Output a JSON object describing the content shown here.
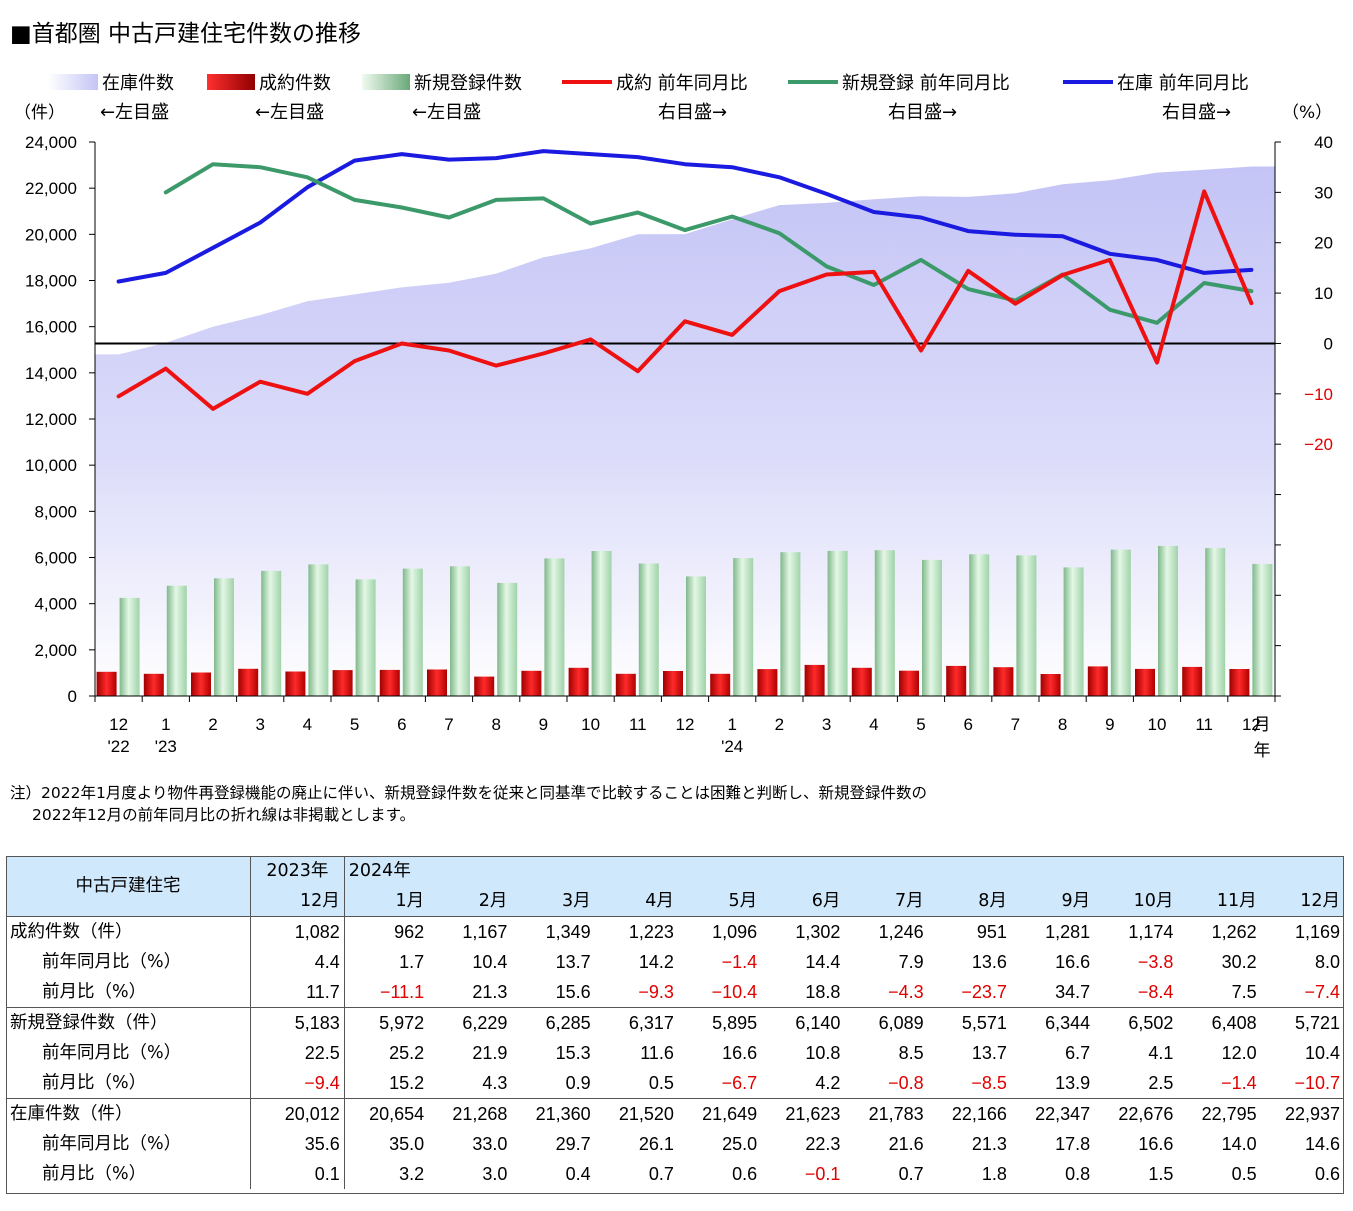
{
  "title": "■首都圏 中古戸建住宅件数の推移",
  "note": {
    "line1": "注）2022年1月度より物件再登録機能の廃止に伴い、新規登録件数を従来と同基準で比較することは困難と判断し、新規登録件数の",
    "line2": "2022年12月の前年同月比の折れ線は非掲載とします。"
  },
  "chart_data": {
    "type": "bar",
    "left_unit": "（件）",
    "right_unit": "（%）",
    "x_unit_top": "月",
    "x_unit_bottom": "年",
    "categories": [
      "12",
      "1",
      "2",
      "3",
      "4",
      "5",
      "6",
      "7",
      "8",
      "9",
      "10",
      "11",
      "12",
      "1",
      "2",
      "3",
      "4",
      "5",
      "6",
      "7",
      "8",
      "9",
      "10",
      "11",
      "12"
    ],
    "year_labels": [
      {
        "index": 0,
        "label": "'22"
      },
      {
        "index": 1,
        "label": "'23"
      },
      {
        "index": 13,
        "label": "'24"
      }
    ],
    "left_axis": {
      "min": 0,
      "max": 24000,
      "ticks": [
        "0",
        "2,000",
        "4,000",
        "6,000",
        "8,000",
        "10,000",
        "12,000",
        "14,000",
        "16,000",
        "18,000",
        "20,000",
        "22,000",
        "24,000"
      ]
    },
    "right_axis": {
      "min": -70,
      "max": 40,
      "ticks": [
        {
          "v": 40,
          "label": "40"
        },
        {
          "v": 30,
          "label": "30"
        },
        {
          "v": 20,
          "label": "20"
        },
        {
          "v": 10,
          "label": "10"
        },
        {
          "v": 0,
          "label": "0"
        },
        {
          "v": -10,
          "label": "−10"
        },
        {
          "v": -20,
          "label": "−20"
        }
      ]
    },
    "legend": [
      {
        "name": "在庫件数",
        "axis": "←左目盛",
        "kind": "area",
        "color": "#c8c8f8"
      },
      {
        "name": "成約件数",
        "axis": "←左目盛",
        "kind": "bar",
        "color": "#d80000"
      },
      {
        "name": "新規登録件数",
        "axis": "←左目盛",
        "kind": "bar",
        "color": "#b8e8c0"
      },
      {
        "name": "成約 前年同月比",
        "axis": "右目盛→",
        "kind": "line",
        "color": "#ee1111"
      },
      {
        "name": "新規登録 前年同月比",
        "axis": "右目盛→",
        "kind": "line",
        "color": "#3c9a6a"
      },
      {
        "name": "在庫 前年同月比",
        "axis": "右目盛→",
        "kind": "line",
        "color": "#1a1ae0"
      }
    ],
    "series": [
      {
        "name": "在庫件数",
        "values": [
          14800,
          15300,
          16000,
          16500,
          17100,
          17400,
          17700,
          17900,
          18300,
          19000,
          19400,
          20000,
          20012,
          20654,
          21268,
          21360,
          21520,
          21649,
          21623,
          21783,
          22166,
          22347,
          22676,
          22795,
          22937
        ]
      },
      {
        "name": "成約件数",
        "values": [
          1050,
          960,
          1020,
          1180,
          1060,
          1120,
          1130,
          1150,
          840,
          1090,
          1220,
          960,
          1082,
          962,
          1167,
          1349,
          1223,
          1096,
          1302,
          1246,
          951,
          1281,
          1174,
          1262,
          1169
        ]
      },
      {
        "name": "新規登録件数",
        "values": [
          4250,
          4780,
          5100,
          5420,
          5700,
          5050,
          5520,
          5620,
          4900,
          5960,
          6280,
          5740,
          5183,
          5972,
          6229,
          6285,
          6317,
          5895,
          6140,
          6089,
          5571,
          6344,
          6502,
          6408,
          5721
        ]
      },
      {
        "name": "成約 前年同月比",
        "values": [
          -10.5,
          -5,
          -13,
          -7.6,
          -10,
          -3.5,
          0,
          -1.4,
          -4.4,
          -2,
          0.8,
          -5.5,
          4.4,
          1.7,
          10.4,
          13.7,
          14.2,
          -1.4,
          14.4,
          7.9,
          13.6,
          16.6,
          -3.8,
          30.2,
          8.0
        ]
      },
      {
        "name": "新規登録 前年同月比",
        "values": [
          null,
          30,
          35.6,
          35,
          33,
          28.5,
          27,
          25,
          28.5,
          28.8,
          23.8,
          26,
          22.5,
          25.2,
          21.9,
          15.3,
          11.6,
          16.6,
          10.8,
          8.5,
          13.7,
          6.7,
          4.1,
          12.0,
          10.4
        ]
      },
      {
        "name": "在庫 前年同月比",
        "values": [
          12.3,
          14,
          19,
          24,
          31,
          36.3,
          37.6,
          36.5,
          36.8,
          38.2,
          37.6,
          37,
          35.6,
          35.0,
          33.0,
          29.7,
          26.1,
          25.0,
          22.3,
          21.6,
          21.3,
          17.8,
          16.6,
          14.0,
          14.6
        ]
      }
    ]
  },
  "table": {
    "corner": "中古戸建住宅",
    "year_2023": "2023年",
    "year_2024": "2024年",
    "months": [
      "12月",
      "1月",
      "2月",
      "3月",
      "4月",
      "5月",
      "6月",
      "7月",
      "8月",
      "9月",
      "10月",
      "11月",
      "12月"
    ],
    "rows": [
      {
        "label": "成約件数（件）",
        "sub": false,
        "group": true,
        "values": [
          "1,082",
          "962",
          "1,167",
          "1,349",
          "1,223",
          "1,096",
          "1,302",
          "1,246",
          "951",
          "1,281",
          "1,174",
          "1,262",
          "1,169"
        ]
      },
      {
        "label": "前年同月比（%）",
        "sub": true,
        "group": false,
        "values": [
          "4.4",
          "1.7",
          "10.4",
          "13.7",
          "14.2",
          "−1.4",
          "14.4",
          "7.9",
          "13.6",
          "16.6",
          "−3.8",
          "30.2",
          "8.0"
        ]
      },
      {
        "label": "前月比（%）",
        "sub": true,
        "group": false,
        "values": [
          "11.7",
          "−11.1",
          "21.3",
          "15.6",
          "−9.3",
          "−10.4",
          "18.8",
          "−4.3",
          "−23.7",
          "34.7",
          "−8.4",
          "7.5",
          "−7.4"
        ]
      },
      {
        "label": "新規登録件数（件）",
        "sub": false,
        "group": true,
        "values": [
          "5,183",
          "5,972",
          "6,229",
          "6,285",
          "6,317",
          "5,895",
          "6,140",
          "6,089",
          "5,571",
          "6,344",
          "6,502",
          "6,408",
          "5,721"
        ]
      },
      {
        "label": "前年同月比（%）",
        "sub": true,
        "group": false,
        "values": [
          "22.5",
          "25.2",
          "21.9",
          "15.3",
          "11.6",
          "16.6",
          "10.8",
          "8.5",
          "13.7",
          "6.7",
          "4.1",
          "12.0",
          "10.4"
        ]
      },
      {
        "label": "前月比（%）",
        "sub": true,
        "group": false,
        "values": [
          "−9.4",
          "15.2",
          "4.3",
          "0.9",
          "0.5",
          "−6.7",
          "4.2",
          "−0.8",
          "−8.5",
          "13.9",
          "2.5",
          "−1.4",
          "−10.7"
        ]
      },
      {
        "label": "在庫件数（件）",
        "sub": false,
        "group": true,
        "values": [
          "20,012",
          "20,654",
          "21,268",
          "21,360",
          "21,520",
          "21,649",
          "21,623",
          "21,783",
          "22,166",
          "22,347",
          "22,676",
          "22,795",
          "22,937"
        ]
      },
      {
        "label": "前年同月比（%）",
        "sub": true,
        "group": false,
        "values": [
          "35.6",
          "35.0",
          "33.0",
          "29.7",
          "26.1",
          "25.0",
          "22.3",
          "21.6",
          "21.3",
          "17.8",
          "16.6",
          "14.0",
          "14.6"
        ]
      },
      {
        "label": "前月比（%）",
        "sub": true,
        "group": false,
        "values": [
          "0.1",
          "3.2",
          "3.0",
          "0.4",
          "0.7",
          "0.6",
          "−0.1",
          "0.7",
          "1.8",
          "0.8",
          "1.5",
          "0.5",
          "0.6"
        ]
      }
    ]
  }
}
